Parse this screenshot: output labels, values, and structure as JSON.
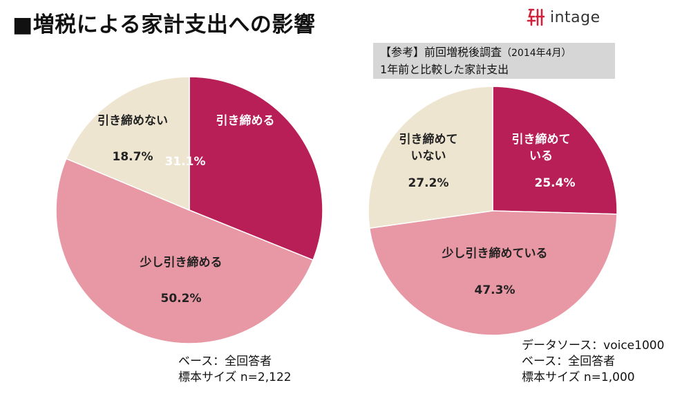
{
  "title": "■増税による家計支出への影響",
  "logo": {
    "text": "intage",
    "color": "#d0203a"
  },
  "reference_box": {
    "line1": "【参考】前回増税後調査",
    "line1_small": "（2014年4月）",
    "line2": "1年前と比較した家計支出"
  },
  "colors": {
    "shrink": "#b81f56",
    "slight": "#e898a4",
    "no_shrink": "#ede5d0"
  },
  "chart_data": [
    {
      "type": "pie",
      "slices": [
        {
          "label": "引き締める",
          "value": 31.1,
          "value_label": "31.1%",
          "color": "#b81f56"
        },
        {
          "label": "少し引き締める",
          "value": 50.2,
          "value_label": "50.2%",
          "color": "#e898a4"
        },
        {
          "label": "引き締めない",
          "value": 18.7,
          "value_label": "18.7%",
          "color": "#ede5d0"
        }
      ],
      "footnotes": [
        "ベース：全回答者",
        "標本サイズ n=2,122"
      ]
    },
    {
      "type": "pie",
      "slices": [
        {
          "label": "引き締めている",
          "label_lines": [
            "引き締めて",
            "いる"
          ],
          "value": 25.4,
          "value_label": "25.4%",
          "color": "#b81f56"
        },
        {
          "label": "少し引き締めている",
          "value": 47.3,
          "value_label": "47.3%",
          "color": "#e898a4"
        },
        {
          "label": "引き締めていない",
          "label_lines": [
            "引き締めて",
            "いない"
          ],
          "value": 27.2,
          "value_label": "27.2%",
          "color": "#ede5d0"
        }
      ],
      "footnotes": [
        "データソース：voice1000",
        "ベース：全回答者",
        "標本サイズ n=1,000"
      ]
    }
  ]
}
